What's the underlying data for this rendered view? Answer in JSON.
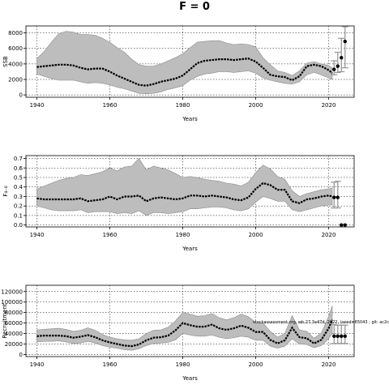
{
  "title": "F = 0",
  "chart_data": [
    {
      "type": "line",
      "id": "ssb",
      "ylabel": "SSB",
      "xlabel": "Years",
      "xlim": [
        1937,
        2027
      ],
      "ylim": [
        -300,
        8900
      ],
      "xticks": [
        1940,
        1960,
        1980,
        2000,
        2020
      ],
      "yticks": [
        0,
        2000,
        4000,
        6000,
        8000
      ],
      "grid": "dotted",
      "annotation": "",
      "band": {
        "x": [
          1940,
          1942,
          1944,
          1946,
          1948,
          1950,
          1952,
          1954,
          1956,
          1958,
          1960,
          1962,
          1964,
          1966,
          1968,
          1970,
          1972,
          1974,
          1976,
          1978,
          1980,
          1982,
          1984,
          1986,
          1988,
          1990,
          1992,
          1994,
          1996,
          1998,
          2000,
          2002,
          2004,
          2006,
          2008,
          2010,
          2012,
          2014,
          2016,
          2018,
          2020,
          2021
        ],
        "upper": [
          4700,
          5600,
          6800,
          7900,
          8200,
          8100,
          7800,
          7800,
          7700,
          7300,
          6800,
          6100,
          5500,
          4600,
          3900,
          3700,
          3700,
          4000,
          4400,
          4800,
          5300,
          6100,
          6800,
          6900,
          7000,
          7000,
          6700,
          6500,
          6600,
          6500,
          6200,
          4800,
          3900,
          3100,
          2900,
          2500,
          3100,
          4100,
          4300,
          4000,
          3800,
          3500
        ],
        "lower": [
          2700,
          2400,
          2100,
          1900,
          1900,
          1900,
          1700,
          1500,
          1600,
          1500,
          1300,
          1000,
          800,
          500,
          200,
          150,
          200,
          400,
          700,
          900,
          1200,
          1900,
          2400,
          2700,
          2800,
          3000,
          3000,
          2900,
          3000,
          3100,
          2800,
          2200,
          1900,
          1700,
          1500,
          1400,
          1700,
          2600,
          2900,
          2600,
          2200,
          2000
        ]
      },
      "line": {
        "x": [
          1940,
          1942,
          1944,
          1946,
          1948,
          1950,
          1952,
          1954,
          1956,
          1958,
          1960,
          1962,
          1964,
          1966,
          1968,
          1970,
          1972,
          1974,
          1976,
          1978,
          1980,
          1982,
          1984,
          1986,
          1988,
          1990,
          1992,
          1994,
          1996,
          1998,
          2000,
          2002,
          2004,
          2006,
          2008,
          2010,
          2012,
          2014,
          2016,
          2018,
          2020,
          2021
        ],
        "y": [
          3600,
          3700,
          3800,
          3900,
          3900,
          3800,
          3500,
          3300,
          3400,
          3400,
          3000,
          2500,
          2100,
          1700,
          1300,
          1200,
          1400,
          1700,
          1900,
          2100,
          2500,
          3300,
          4100,
          4400,
          4500,
          4600,
          4600,
          4500,
          4600,
          4700,
          4300,
          3500,
          2600,
          2400,
          2300,
          1900,
          2400,
          3700,
          3900,
          3700,
          3200,
          2800
        ]
      },
      "projections": [
        {
          "x": 2021.5,
          "y": 3300,
          "low": 2600,
          "high": 4400
        },
        {
          "x": 2022.5,
          "y": 3700,
          "low": 2900,
          "high": 5500
        },
        {
          "x": 2023.5,
          "y": 4800,
          "low": 3000,
          "high": 7300
        },
        {
          "x": 2024.5,
          "y": 6900,
          "low": 3500,
          "high": 8800
        }
      ]
    },
    {
      "type": "line",
      "id": "f",
      "ylabel": "F₄₋₈",
      "xlabel": "Years",
      "xlim": [
        1937,
        2027
      ],
      "ylim": [
        -0.02,
        0.73
      ],
      "xticks": [
        1940,
        1960,
        1980,
        2000,
        2020
      ],
      "yticks": [
        0.0,
        0.1,
        0.2,
        0.3,
        0.4,
        0.5,
        0.6,
        0.7
      ],
      "ytick_labels": [
        "0.0",
        "0.1",
        "0.2",
        "0.3",
        "0.4",
        "0.5",
        "0.6",
        "0.7"
      ],
      "grid": "dotted",
      "annotation": "",
      "band": {
        "x": [
          1940,
          1942,
          1944,
          1946,
          1948,
          1950,
          1952,
          1954,
          1956,
          1958,
          1960,
          1962,
          1964,
          1966,
          1968,
          1970,
          1972,
          1974,
          1976,
          1978,
          1980,
          1982,
          1984,
          1986,
          1988,
          1990,
          1992,
          1994,
          1996,
          1998,
          2000,
          2002,
          2004,
          2006,
          2008,
          2010,
          2012,
          2014,
          2016,
          2018,
          2020,
          2021
        ],
        "upper": [
          0.38,
          0.41,
          0.44,
          0.47,
          0.49,
          0.5,
          0.53,
          0.52,
          0.54,
          0.56,
          0.6,
          0.57,
          0.61,
          0.62,
          0.7,
          0.58,
          0.62,
          0.6,
          0.58,
          0.54,
          0.5,
          0.51,
          0.5,
          0.48,
          0.47,
          0.46,
          0.44,
          0.43,
          0.41,
          0.45,
          0.55,
          0.63,
          0.59,
          0.51,
          0.48,
          0.36,
          0.3,
          0.33,
          0.35,
          0.37,
          0.38,
          0.39
        ],
        "lower": [
          0.2,
          0.18,
          0.16,
          0.15,
          0.15,
          0.15,
          0.16,
          0.13,
          0.14,
          0.14,
          0.14,
          0.12,
          0.13,
          0.12,
          0.15,
          0.1,
          0.13,
          0.13,
          0.12,
          0.13,
          0.14,
          0.17,
          0.17,
          0.18,
          0.19,
          0.19,
          0.18,
          0.16,
          0.15,
          0.17,
          0.24,
          0.3,
          0.28,
          0.25,
          0.25,
          0.16,
          0.14,
          0.16,
          0.18,
          0.2,
          0.21,
          0.21
        ]
      },
      "line": {
        "x": [
          1940,
          1942,
          1944,
          1946,
          1948,
          1950,
          1952,
          1954,
          1956,
          1958,
          1960,
          1962,
          1964,
          1966,
          1968,
          1970,
          1972,
          1974,
          1976,
          1978,
          1980,
          1982,
          1984,
          1986,
          1988,
          1990,
          1992,
          1994,
          1996,
          1998,
          2000,
          2002,
          2004,
          2006,
          2008,
          2010,
          2012,
          2014,
          2016,
          2018,
          2020,
          2021
        ],
        "y": [
          0.28,
          0.27,
          0.27,
          0.27,
          0.27,
          0.27,
          0.28,
          0.25,
          0.26,
          0.27,
          0.3,
          0.27,
          0.3,
          0.3,
          0.31,
          0.25,
          0.28,
          0.29,
          0.28,
          0.27,
          0.28,
          0.31,
          0.31,
          0.3,
          0.31,
          0.3,
          0.29,
          0.27,
          0.26,
          0.29,
          0.38,
          0.44,
          0.42,
          0.37,
          0.37,
          0.25,
          0.23,
          0.27,
          0.28,
          0.3,
          0.31,
          0.3
        ]
      },
      "projections": [
        {
          "x": 2021.5,
          "y": 0.29,
          "low": 0.18,
          "high": 0.45
        },
        {
          "x": 2022.5,
          "y": 0.29,
          "low": 0.18,
          "high": 0.46
        },
        {
          "x": 2023.5,
          "y": 0.0,
          "low": 0.0,
          "high": 0.0
        },
        {
          "x": 2024.5,
          "y": 0.0,
          "low": 0.0,
          "high": 0.0
        }
      ]
    },
    {
      "type": "line",
      "id": "recruitment",
      "ylabel": "Recruitment",
      "xlabel": "Years",
      "xlim": [
        1937,
        2027
      ],
      "ylim": [
        -4000,
        132000
      ],
      "xticks": [
        1940,
        1960,
        1980,
        2000,
        2020
      ],
      "yticks": [
        0,
        20000,
        40000,
        60000,
        80000,
        100000,
        120000
      ],
      "grid": "dotted",
      "annotation": "stockassessment.org, wb 27.3a47d, 2022, (seed=65043 ; git: ac2c",
      "band": {
        "x": [
          1940,
          1942,
          1944,
          1946,
          1948,
          1950,
          1952,
          1954,
          1956,
          1958,
          1960,
          1962,
          1964,
          1966,
          1968,
          1970,
          1972,
          1974,
          1976,
          1978,
          1980,
          1982,
          1984,
          1986,
          1988,
          1990,
          1992,
          1994,
          1996,
          1998,
          2000,
          2002,
          2004,
          2006,
          2008,
          2010,
          2012,
          2014,
          2016,
          2018,
          2020,
          2021
        ],
        "upper": [
          47000,
          48000,
          49000,
          50000,
          48000,
          44000,
          46000,
          51000,
          46000,
          38000,
          33000,
          30000,
          28000,
          27000,
          30000,
          40000,
          46000,
          47000,
          52000,
          64000,
          80000,
          77000,
          73000,
          74000,
          78000,
          70000,
          66000,
          70000,
          77000,
          72000,
          61000,
          60000,
          44000,
          33000,
          40000,
          74000,
          47000,
          44000,
          31000,
          41000,
          72000,
          93000
        ],
        "lower": [
          24000,
          25000,
          25000,
          26000,
          24000,
          21000,
          22000,
          25000,
          22000,
          17000,
          14000,
          12000,
          9000,
          8000,
          11000,
          17000,
          21000,
          22000,
          23000,
          28000,
          40000,
          37000,
          35000,
          35000,
          37000,
          33000,
          30000,
          32000,
          35000,
          33000,
          27000,
          27000,
          16000,
          12000,
          16000,
          30000,
          20000,
          19000,
          13000,
          17000,
          30000,
          40000
        ]
      },
      "line": {
        "x": [
          1940,
          1942,
          1944,
          1946,
          1948,
          1950,
          1952,
          1954,
          1956,
          1958,
          1960,
          1962,
          1964,
          1966,
          1968,
          1970,
          1972,
          1974,
          1976,
          1978,
          1980,
          1982,
          1984,
          1986,
          1988,
          1990,
          1992,
          1994,
          1996,
          1998,
          2000,
          2002,
          2004,
          2006,
          2008,
          2010,
          2012,
          2014,
          2016,
          2018,
          2020,
          2021
        ],
        "y": [
          35000,
          36000,
          36000,
          36000,
          35000,
          32000,
          34000,
          37000,
          33000,
          27000,
          23000,
          20000,
          17000,
          16000,
          19000,
          27000,
          32000,
          33000,
          36000,
          46000,
          60000,
          56000,
          53000,
          53000,
          57000,
          50000,
          47000,
          50000,
          55000,
          51000,
          43000,
          43000,
          28000,
          21000,
          27000,
          51000,
          33000,
          31000,
          21000,
          28000,
          50000,
          66000
        ]
      },
      "projections": [
        {
          "x": 2021.5,
          "y": 35000,
          "low": 21000,
          "high": 57000
        },
        {
          "x": 2022.5,
          "y": 35000,
          "low": 21000,
          "high": 56000
        },
        {
          "x": 2023.5,
          "y": 35000,
          "low": 21000,
          "high": 56000
        },
        {
          "x": 2024.5,
          "y": 35000,
          "low": 21000,
          "high": 56000
        }
      ]
    }
  ]
}
